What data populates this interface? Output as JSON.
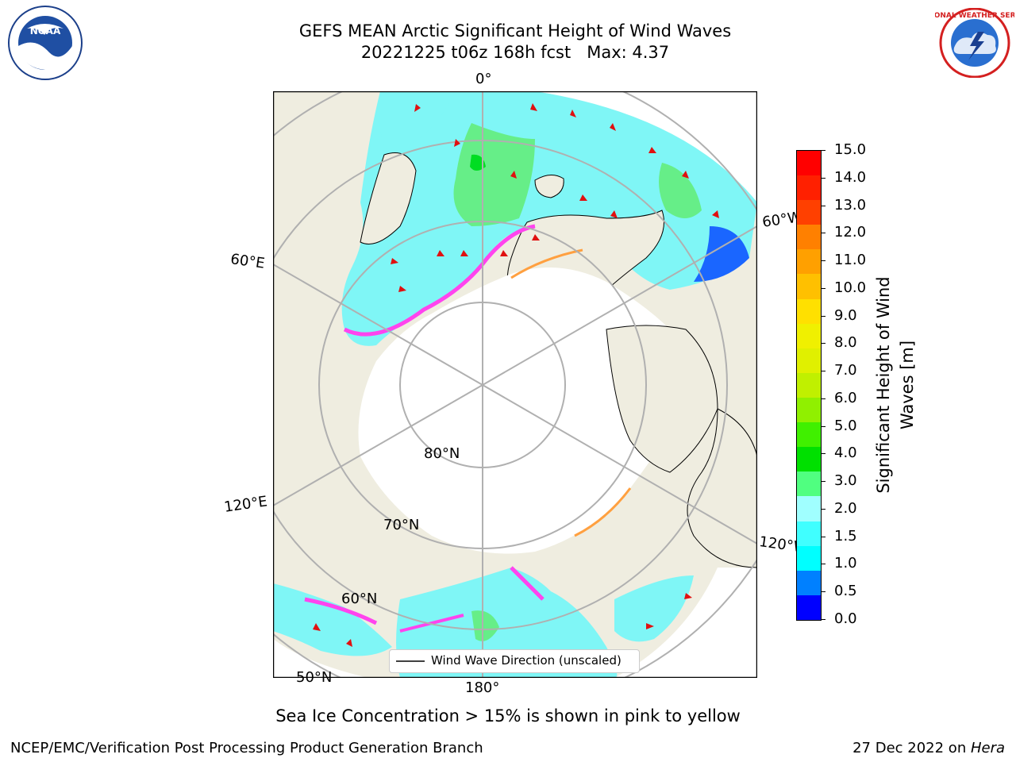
{
  "title_line1": "GEFS MEAN Arctic Significant Height of Wind Waves",
  "title_line2": "20221225 t06z 168h fcst   Max: 4.37",
  "lon_labels": {
    "top": "0°",
    "right_upper": "60°W",
    "right_lower": "120°W",
    "bottom": "180°",
    "left_upper": "60°E",
    "left_lower": "120°E"
  },
  "lat_labels": {
    "inner": "80°N",
    "middle": "70°N",
    "outer": "60°N",
    "corner": "50°N"
  },
  "legend_label": "Wind Wave Direction (unscaled)",
  "colorbar": {
    "title_line1": "Significant Height of Wind",
    "title_line2": "Waves [m]",
    "ticks": [
      "15.0",
      "14.0",
      "13.0",
      "12.0",
      "11.0",
      "10.0",
      "9.0",
      "8.0",
      "7.0",
      "6.0",
      "5.0",
      "4.0",
      "3.0",
      "2.0",
      "1.5",
      "1.0",
      "0.5",
      "0.0"
    ],
    "colors": [
      "#0000ff",
      "#0080ff",
      "#00ffff",
      "#40ffff",
      "#a0ffff",
      "#50ff80",
      "#00e000",
      "#40f000",
      "#90f000",
      "#c0f000",
      "#e0f000",
      "#f0f000",
      "#ffe000",
      "#ffc000",
      "#ffa000",
      "#ff8000",
      "#ff4000",
      "#ff2000",
      "#ff0000"
    ]
  },
  "caption": "Sea Ice Concentration > 15% is shown in pink to yellow",
  "footer_left": "NCEP/EMC/Verification Post Processing Product Generation Branch",
  "footer_date": "27 Dec 2022 on ",
  "footer_host": "Hera",
  "logos": {
    "noaa_text": "NOAA",
    "nws_ring": "NATIONAL WEATHER SERVICE"
  }
}
